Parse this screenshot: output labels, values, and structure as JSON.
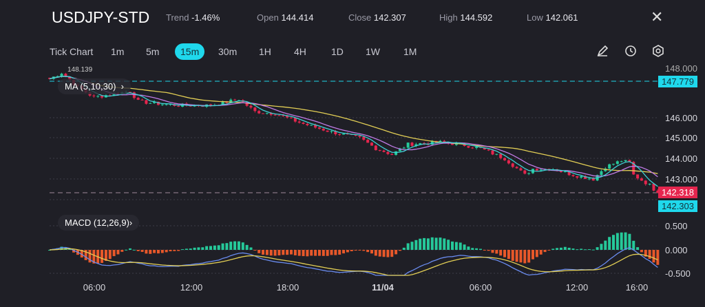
{
  "header": {
    "symbol": "USDJPY-STD",
    "trend_label": "Trend",
    "trend": "-1.46%",
    "open_label": "Open",
    "open": "144.414",
    "close_label": "Close",
    "close": "142.307",
    "high_label": "High",
    "high": "144.592",
    "low_label": "Low",
    "low": "142.061"
  },
  "timeframes": [
    "Tick Chart",
    "1m",
    "5m",
    "15m",
    "30m",
    "1H",
    "4H",
    "1D",
    "1W",
    "1M"
  ],
  "active_timeframe": "15m",
  "tools": [
    "pencil-icon",
    "clock-icon",
    "settings-icon"
  ],
  "indicators": {
    "ma": "MA (5,10,30)",
    "macd": "MACD (12,26,9)"
  },
  "price_tags": {
    "high_marker": "148.139",
    "ask": "147.779",
    "current": "142.318",
    "bid": "142.303",
    "top_partial": "148.000"
  },
  "colors": {
    "up": "#26c99a",
    "down": "#e5264e",
    "accent": "#1fd8ec",
    "ma5": "#3fd1d6",
    "ma10": "#c07be6",
    "ma30": "#e3cf55",
    "macd": "#6a8cf0",
    "signal": "#e3cf55",
    "hist_neg": "#e8582a"
  },
  "chart_data": {
    "type": "candlestick",
    "y_ticks": [
      "146.000",
      "145.000",
      "144.000",
      "143.000"
    ],
    "y_range": [
      141.9,
      148.3
    ],
    "macd_ticks": [
      "0.500",
      "0.000",
      "-0.500"
    ],
    "x_ticks": [
      "06:00",
      "12:00",
      "18:00",
      "11/04",
      "06:00",
      "12:00",
      "16:00"
    ],
    "interval_minutes": 15,
    "price_path": [
      [
        0,
        147.9
      ],
      [
        3,
        148.2
      ],
      [
        7,
        147.5
      ],
      [
        11,
        147.0
      ],
      [
        20,
        147.3
      ],
      [
        22,
        146.8
      ],
      [
        26,
        146.7
      ],
      [
        32,
        146.6
      ],
      [
        40,
        146.6
      ],
      [
        47,
        146.9
      ],
      [
        51,
        146.3
      ],
      [
        56,
        146.2
      ],
      [
        63,
        145.7
      ],
      [
        70,
        145.3
      ],
      [
        77,
        145.0
      ],
      [
        81,
        144.5
      ],
      [
        85,
        144.2
      ],
      [
        89,
        144.7
      ],
      [
        97,
        144.8
      ],
      [
        102,
        144.7
      ],
      [
        107,
        144.5
      ],
      [
        113,
        144.0
      ],
      [
        118,
        143.2
      ],
      [
        120,
        143.5
      ],
      [
        125,
        143.5
      ],
      [
        130,
        143.2
      ],
      [
        135,
        143.0
      ],
      [
        138,
        143.6
      ],
      [
        142,
        143.9
      ],
      [
        144,
        143.8
      ],
      [
        145,
        143.2
      ],
      [
        149,
        142.7
      ],
      [
        151,
        142.32
      ]
    ]
  }
}
